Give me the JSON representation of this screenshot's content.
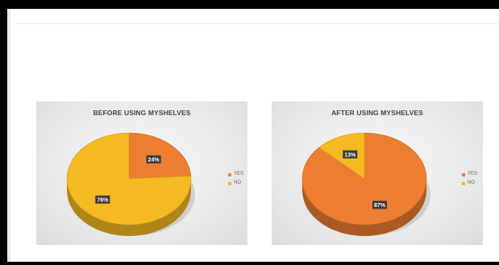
{
  "chart_data": [
    {
      "type": "pie",
      "title": "BEFORE USING MYSHELVES",
      "categories": [
        "YES",
        "NO"
      ],
      "values": [
        24,
        76
      ],
      "data_labels": [
        "24%",
        "76%"
      ],
      "colors": [
        "#ED7D31",
        "#F5B921"
      ],
      "legend_position": "right"
    },
    {
      "type": "pie",
      "title": "AFTER USING MYSHELVES",
      "categories": [
        "YES",
        "NO"
      ],
      "values": [
        87,
        13
      ],
      "data_labels": [
        "87%",
        "13%"
      ],
      "colors": [
        "#ED7D31",
        "#F5B921"
      ],
      "legend_position": "right"
    }
  ]
}
